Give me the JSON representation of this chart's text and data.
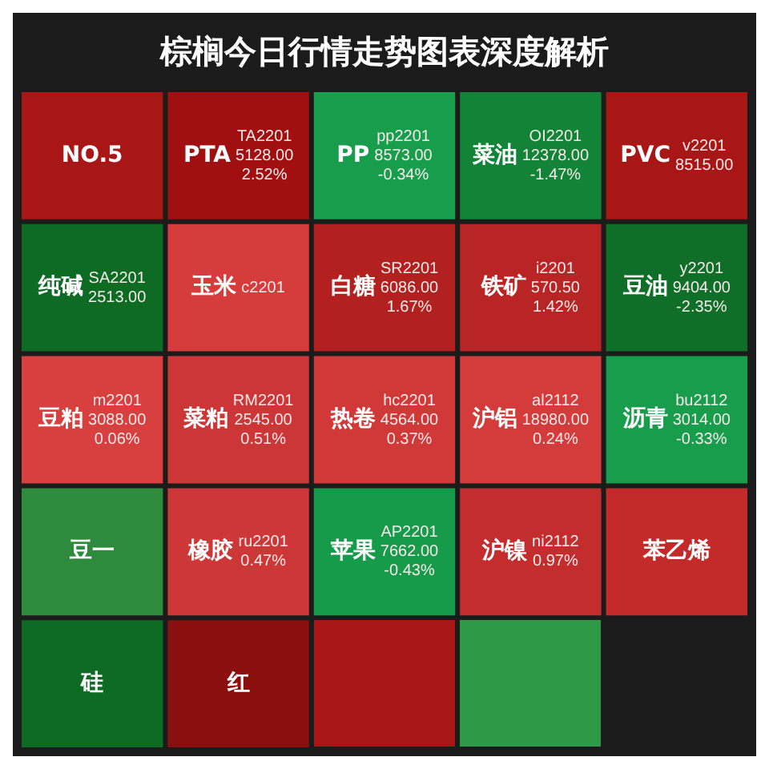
{
  "chart_data": {
    "type": "other",
    "title": "棕榈今日行情走势图表深度解析",
    "categories": [
      "NO.5",
      "PTA",
      "PP",
      "菜油",
      "PVC",
      "纯碱",
      "玉米",
      "白糖",
      "铁矿",
      "豆油",
      "豆粕",
      "菜粕",
      "热卷",
      "沪铝",
      "沥青",
      "豆一",
      "橡胶",
      "苹果",
      "沪镍",
      "苯乙烯",
      "硅",
      "红"
    ],
    "values": [
      null,
      2.52,
      -0.34,
      -1.47,
      null,
      null,
      null,
      1.67,
      1.42,
      -2.35,
      0.06,
      0.51,
      0.37,
      0.24,
      -0.33,
      null,
      0.47,
      -0.43,
      0.97,
      null,
      null,
      null
    ],
    "value_labels": [
      null,
      "2.52%",
      "-0.34%",
      "-1.47%",
      null,
      null,
      null,
      "1.67%",
      "1.42%",
      "-2.35%",
      "0.06%",
      "0.51%",
      "0.37%",
      "0.24%",
      "-0.33%",
      null,
      "0.47%",
      "-0.43%",
      "0.97%",
      null,
      null,
      null
    ],
    "annotations": [
      null,
      "TA2201\n5128.00",
      "pp2201\n8573.00",
      "OI2201\n12378.00",
      "v2201\n8515.00",
      "SA2201\n2513.00",
      "c2201",
      "SR2201\n6086.00",
      "i2201\n570.50",
      "y2201\n9404.00",
      "m2201\n3088.00",
      "RM2201\n2545.00",
      "hc2201\n4564.00",
      "al2112\n18980.00",
      "bu2112\n3014.00",
      null,
      "ru2201",
      "AP2201\n7662.00",
      "ni2112",
      null,
      null,
      null
    ],
    "colors": [
      "#a81616",
      null,
      null,
      null,
      "#a81616",
      "#0e6b24",
      "#d63c3c",
      null,
      null,
      null,
      null,
      null,
      null,
      null,
      null,
      "#2e8b3e",
      null,
      null,
      null,
      "#c42a2a",
      "#0e6b24",
      "#8b0f0f"
    ]
  }
}
